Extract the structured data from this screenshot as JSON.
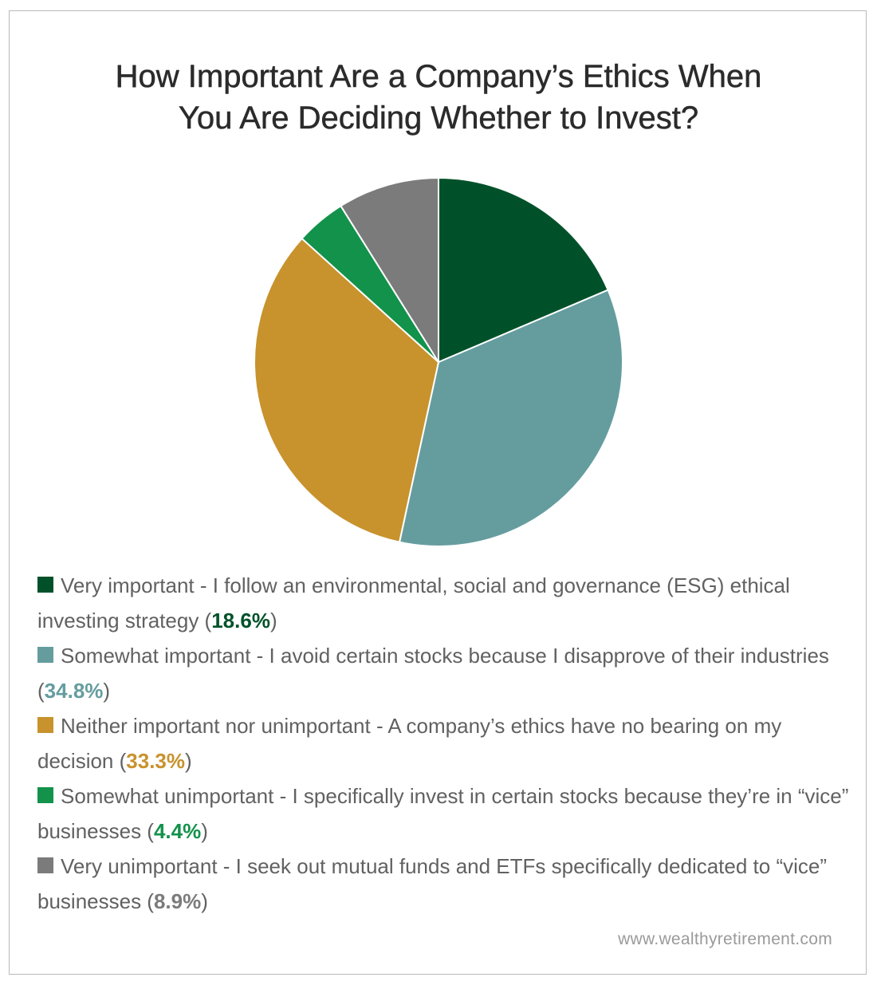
{
  "chart_data": {
    "type": "pie",
    "title_lines": [
      "How Important Are a Company’s Ethics When",
      "You Are Deciding Whether to Invest?"
    ],
    "slices": [
      {
        "label": "Very important - I follow an environmental, social and governance (ESG) ethical investing strategy",
        "value": 18.6,
        "value_label": "18.6%",
        "color": "#00512a"
      },
      {
        "label": "Somewhat important - I avoid certain stocks because I disapprove of their industries",
        "value": 34.8,
        "value_label": "34.8%",
        "color": "#659d9f"
      },
      {
        "label": "Neither important nor unimportant - A company’s ethics have no bearing on my decision",
        "value": 33.3,
        "value_label": "33.3%",
        "color": "#c8922d"
      },
      {
        "label": "Somewhat unimportant - I specifically invest in certain stocks because they’re in “vice” businesses",
        "value": 4.4,
        "value_label": "4.4%",
        "color": "#12924a"
      },
      {
        "label": "Very unimportant - I seek out mutual funds and ETFs specifically dedicated to “vice” businesses",
        "value": 8.9,
        "value_label": "8.9%",
        "color": "#7b7b7b"
      }
    ],
    "start_angle": "12 o'clock",
    "direction": "clockwise",
    "legend_position": "bottom"
  },
  "source": "www.wealthyretirement.com"
}
